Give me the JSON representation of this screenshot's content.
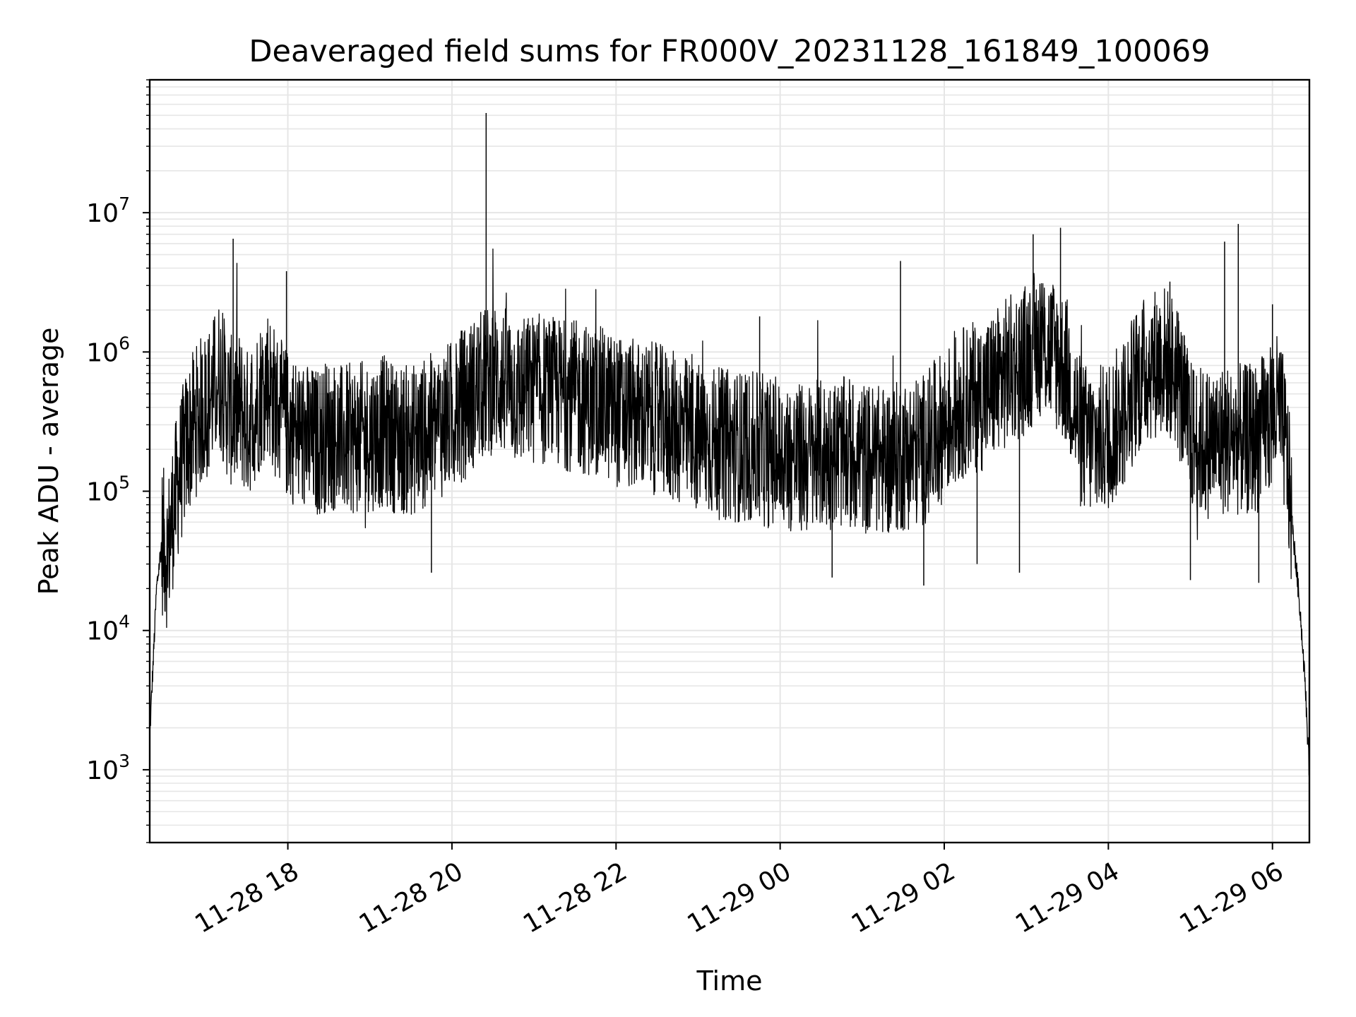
{
  "chart_data": {
    "type": "line",
    "title": "Deaveraged field sums for FR000V_20231128_161849_100069",
    "xlabel": "Time",
    "ylabel": "Peak ADU - average",
    "yscale": "log",
    "ylim": [
      300,
      90000000
    ],
    "xlim": [
      "2023-11-28T16:19:00",
      "2023-11-29T06:27:00"
    ],
    "grid": true,
    "line_color": "#000000",
    "grid_color": "#e6e6e6",
    "x_ticks": [
      {
        "time": "2023-11-28T18:00:00",
        "label": "11-28 18"
      },
      {
        "time": "2023-11-28T20:00:00",
        "label": "11-28 20"
      },
      {
        "time": "2023-11-28T22:00:00",
        "label": "11-28 22"
      },
      {
        "time": "2023-11-29T00:00:00",
        "label": "11-29 00"
      },
      {
        "time": "2023-11-29T02:00:00",
        "label": "11-29 02"
      },
      {
        "time": "2023-11-29T04:00:00",
        "label": "11-29 04"
      },
      {
        "time": "2023-11-29T06:00:00",
        "label": "11-29 06"
      }
    ],
    "y_ticks": [
      {
        "value": 1000,
        "base": "10",
        "exp": "3"
      },
      {
        "value": 10000,
        "base": "10",
        "exp": "4"
      },
      {
        "value": 100000,
        "base": "10",
        "exp": "5"
      },
      {
        "value": 1000000,
        "base": "10",
        "exp": "6"
      },
      {
        "value": 10000000,
        "base": "10",
        "exp": "7"
      }
    ],
    "series": [
      {
        "points": [
          [
            "2023-11-28T16:19:00",
            1700
          ],
          [
            "2023-11-28T16:24:00",
            20000
          ],
          [
            "2023-11-28T16:28:00",
            45000
          ],
          [
            "2023-11-28T16:32:00",
            35000
          ],
          [
            "2023-11-28T16:36:00",
            70000
          ],
          [
            "2023-11-28T16:40:00",
            120000
          ],
          [
            "2023-11-28T16:45:00",
            200000
          ],
          [
            "2023-11-28T16:50:00",
            280000
          ],
          [
            "2023-11-28T16:55:00",
            350000
          ],
          [
            "2023-11-28T17:00:00",
            420000
          ],
          [
            "2023-11-28T17:05:00",
            500000
          ],
          [
            "2023-11-28T17:10:00",
            700000
          ],
          [
            "2023-11-28T17:15:00",
            450000
          ],
          [
            "2023-11-28T17:20:00",
            350000
          ],
          [
            "2023-11-28T17:25:00",
            400000
          ],
          [
            "2023-11-28T17:30:00",
            300000
          ],
          [
            "2023-11-28T17:35:00",
            380000
          ],
          [
            "2023-11-28T17:40:00",
            500000
          ],
          [
            "2023-11-28T17:45:00",
            650000
          ],
          [
            "2023-11-28T17:50:00",
            450000
          ],
          [
            "2023-11-28T17:55:00",
            350000
          ],
          [
            "2023-11-28T18:00:00",
            300000
          ],
          [
            "2023-11-28T18:10:00",
            250000
          ],
          [
            "2023-11-28T18:20:00",
            220000
          ],
          [
            "2023-11-28T18:30:00",
            260000
          ],
          [
            "2023-11-28T18:40:00",
            230000
          ],
          [
            "2023-11-28T18:50:00",
            240000
          ],
          [
            "2023-11-28T19:00:00",
            250000
          ],
          [
            "2023-11-28T19:10:00",
            270000
          ],
          [
            "2023-11-28T19:20:00",
            240000
          ],
          [
            "2023-11-28T19:30:00",
            230000
          ],
          [
            "2023-11-28T19:40:00",
            260000
          ],
          [
            "2023-11-28T19:50:00",
            300000
          ],
          [
            "2023-11-28T20:00:00",
            350000
          ],
          [
            "2023-11-28T20:10:00",
            450000
          ],
          [
            "2023-11-28T20:20:00",
            550000
          ],
          [
            "2023-11-28T20:30:00",
            650000
          ],
          [
            "2023-11-28T20:40:00",
            600000
          ],
          [
            "2023-11-28T20:50:00",
            500000
          ],
          [
            "2023-11-28T21:00:00",
            550000
          ],
          [
            "2023-11-28T21:10:00",
            520000
          ],
          [
            "2023-11-28T21:20:00",
            500000
          ],
          [
            "2023-11-28T21:30:00",
            480000
          ],
          [
            "2023-11-28T21:40:00",
            450000
          ],
          [
            "2023-11-28T21:50:00",
            430000
          ],
          [
            "2023-11-28T22:00:00",
            380000
          ],
          [
            "2023-11-28T22:15:00",
            350000
          ],
          [
            "2023-11-28T22:30:00",
            330000
          ],
          [
            "2023-11-28T22:45:00",
            280000
          ],
          [
            "2023-11-28T23:00:00",
            240000
          ],
          [
            "2023-11-28T23:15:00",
            220000
          ],
          [
            "2023-11-28T23:30:00",
            210000
          ],
          [
            "2023-11-28T23:45:00",
            200000
          ],
          [
            "2023-11-29T00:00:00",
            180000
          ],
          [
            "2023-11-29T00:15:00",
            170000
          ],
          [
            "2023-11-29T00:30:00",
            180000
          ],
          [
            "2023-11-29T00:45:00",
            190000
          ],
          [
            "2023-11-29T01:00:00",
            175000
          ],
          [
            "2023-11-29T01:15:00",
            165000
          ],
          [
            "2023-11-29T01:30:00",
            180000
          ],
          [
            "2023-11-29T01:45:00",
            200000
          ],
          [
            "2023-11-29T02:00:00",
            300000
          ],
          [
            "2023-11-29T02:15:00",
            450000
          ],
          [
            "2023-11-29T02:30:00",
            500000
          ],
          [
            "2023-11-29T02:45:00",
            700000
          ],
          [
            "2023-11-29T03:00:00",
            900000
          ],
          [
            "2023-11-29T03:10:00",
            1200000
          ],
          [
            "2023-11-29T03:20:00",
            1000000
          ],
          [
            "2023-11-29T03:30:00",
            700000
          ],
          [
            "2023-11-29T03:40:00",
            250000
          ],
          [
            "2023-11-29T03:50:00",
            220000
          ],
          [
            "2023-11-29T04:00:00",
            250000
          ],
          [
            "2023-11-29T04:10:00",
            350000
          ],
          [
            "2023-11-29T04:20:00",
            600000
          ],
          [
            "2023-11-29T04:30:00",
            800000
          ],
          [
            "2023-11-29T04:40:00",
            900000
          ],
          [
            "2023-11-29T04:50:00",
            700000
          ],
          [
            "2023-11-29T05:00:00",
            250000
          ],
          [
            "2023-11-29T05:10:00",
            220000
          ],
          [
            "2023-11-29T05:20:00",
            230000
          ],
          [
            "2023-11-29T05:30:00",
            240000
          ],
          [
            "2023-11-29T05:40:00",
            230000
          ],
          [
            "2023-11-29T05:50:00",
            250000
          ],
          [
            "2023-11-29T06:00:00",
            350000
          ],
          [
            "2023-11-29T06:05:00",
            400000
          ],
          [
            "2023-11-29T06:10:00",
            200000
          ],
          [
            "2023-11-29T06:15:00",
            50000
          ],
          [
            "2023-11-29T06:20:00",
            15000
          ],
          [
            "2023-11-29T06:24:00",
            4000
          ],
          [
            "2023-11-29T06:27:00",
            900
          ]
        ],
        "spikes": [
          [
            "2023-11-28T17:20:00",
            6500000
          ],
          [
            "2023-11-28T17:59:00",
            3800000
          ],
          [
            "2023-11-28T20:25:00",
            52000000
          ],
          [
            "2023-11-28T23:45:00",
            1800000
          ],
          [
            "2023-11-29T01:28:00",
            4500000
          ],
          [
            "2023-11-29T03:05:00",
            7000000
          ],
          [
            "2023-11-29T03:25:00",
            7800000
          ],
          [
            "2023-11-29T04:45:00",
            3200000
          ],
          [
            "2023-11-29T05:25:00",
            6200000
          ],
          [
            "2023-11-29T05:35:00",
            8300000
          ],
          [
            "2023-11-29T06:00:00",
            2200000
          ]
        ],
        "dips": [
          [
            "2023-11-28T19:45:00",
            26000
          ],
          [
            "2023-11-29T00:38:00",
            24000
          ],
          [
            "2023-11-29T01:45:00",
            21000
          ],
          [
            "2023-11-29T02:24:00",
            30000
          ],
          [
            "2023-11-29T02:55:00",
            26000
          ],
          [
            "2023-11-29T05:00:00",
            23000
          ],
          [
            "2023-11-29T05:50:00",
            22000
          ]
        ]
      }
    ]
  }
}
